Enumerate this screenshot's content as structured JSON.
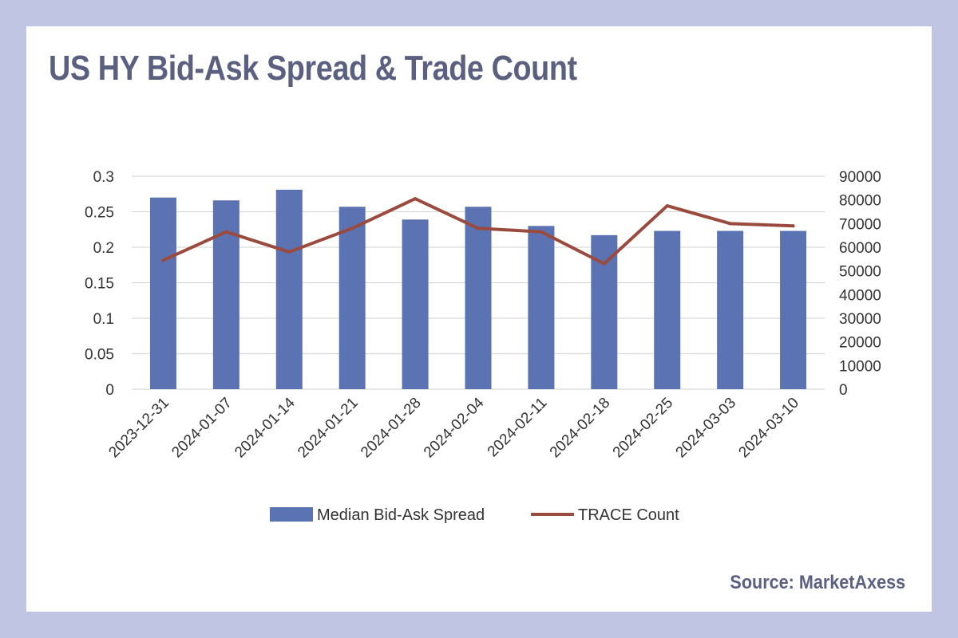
{
  "title": "US HY Bid-Ask Spread & Trade Count",
  "source": "Source: MarketAxess",
  "colors": {
    "background": "#bfc5e3",
    "card": "#ffffff",
    "title": "#5b6080",
    "bar": "#5b73b3",
    "line": "#9b4a3e",
    "grid": "#d9d9d9"
  },
  "chart_data": {
    "type": "bar",
    "categories": [
      "2023-12-31",
      "2024-01-07",
      "2024-01-14",
      "2024-01-21",
      "2024-01-28",
      "2024-02-04",
      "2024-02-11",
      "2024-02-18",
      "2024-02-25",
      "2024-03-03",
      "2024-03-10"
    ],
    "series": [
      {
        "name": "Median  Bid-Ask Spread",
        "type": "bar",
        "axis": "left",
        "values": [
          0.27,
          0.266,
          0.281,
          0.257,
          0.239,
          0.257,
          0.23,
          0.217,
          0.223,
          0.223,
          0.223
        ]
      },
      {
        "name": "TRACE Count",
        "type": "line",
        "axis": "right",
        "values": [
          54500,
          66500,
          58000,
          68000,
          80500,
          68000,
          66500,
          53000,
          77500,
          70000,
          69000
        ]
      }
    ],
    "y_left": {
      "ylim": [
        0,
        0.3
      ],
      "ticks": [
        "0",
        "0.05",
        "0.1",
        "0.15",
        "0.2",
        "0.25",
        "0.3"
      ]
    },
    "y_right": {
      "ylim": [
        0,
        90000
      ],
      "ticks": [
        "0",
        "10000",
        "20000",
        "30000",
        "40000",
        "50000",
        "60000",
        "70000",
        "80000",
        "90000"
      ]
    },
    "grid": true,
    "legend_position": "bottom"
  }
}
